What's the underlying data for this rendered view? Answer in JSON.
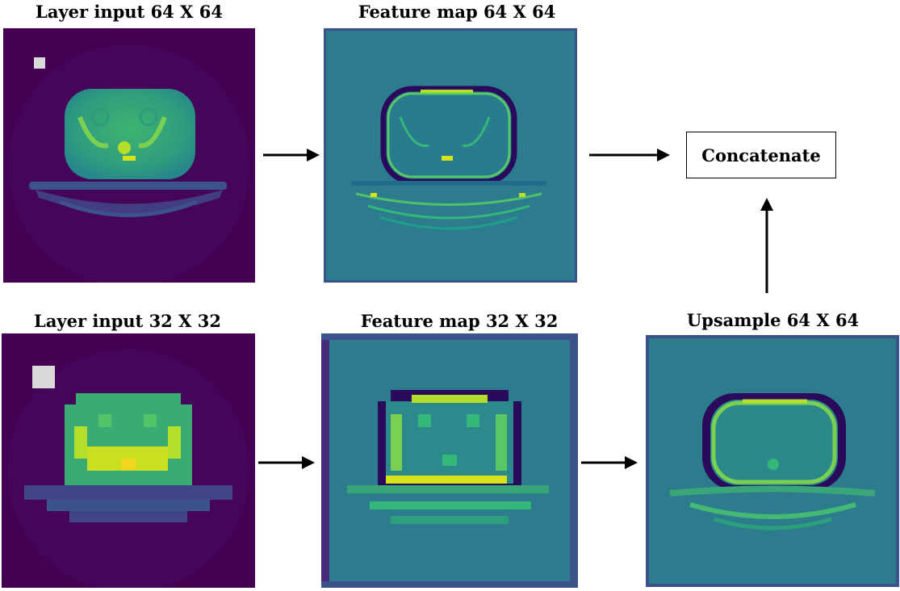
{
  "panels": {
    "input64": {
      "title": "Layer input 64 X 64"
    },
    "feature64": {
      "title": "Feature map 64 X 64"
    },
    "input32": {
      "title": "Layer input 32 X 32"
    },
    "feature32": {
      "title": "Feature map 32 X 32"
    },
    "upsample64": {
      "title": "Upsample 64 X 64"
    }
  },
  "concatenate": {
    "label": "Concatenate"
  },
  "colors": {
    "viridis_dark": "#440154",
    "viridis_deep": "#46085c",
    "viridis_teal": "#2c7c8e",
    "viridis_green": "#44bf70",
    "viridis_yellow": "#d6e21a",
    "marker_gray": "#d9d9d9"
  }
}
